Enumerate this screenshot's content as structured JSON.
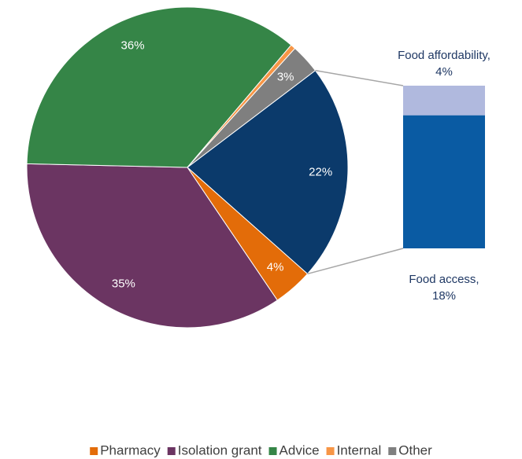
{
  "chart_data": {
    "type": "pie-of-bar",
    "categories": [
      "Pharmacy",
      "Isolation grant",
      "Advice",
      "Internal",
      "Other"
    ],
    "values": [
      4,
      35,
      36,
      0.5,
      3
    ],
    "value_labels": [
      "4%",
      "35%",
      "36%",
      null,
      "3%"
    ],
    "colors": [
      "#e36c09",
      "#6b3562",
      "#358547",
      "#f79646",
      "#7f7f7f"
    ],
    "combined_value": 22,
    "combined_label": "22%",
    "combined_color": "#0b3a6b",
    "bar": {
      "categories": [
        "Food access,",
        "Food affordability,"
      ],
      "values": [
        18,
        4
      ],
      "value_labels": [
        "18%",
        "4%"
      ],
      "colors": [
        "#0a5ba3",
        "#b0b9de"
      ]
    },
    "legend": "bottom"
  }
}
